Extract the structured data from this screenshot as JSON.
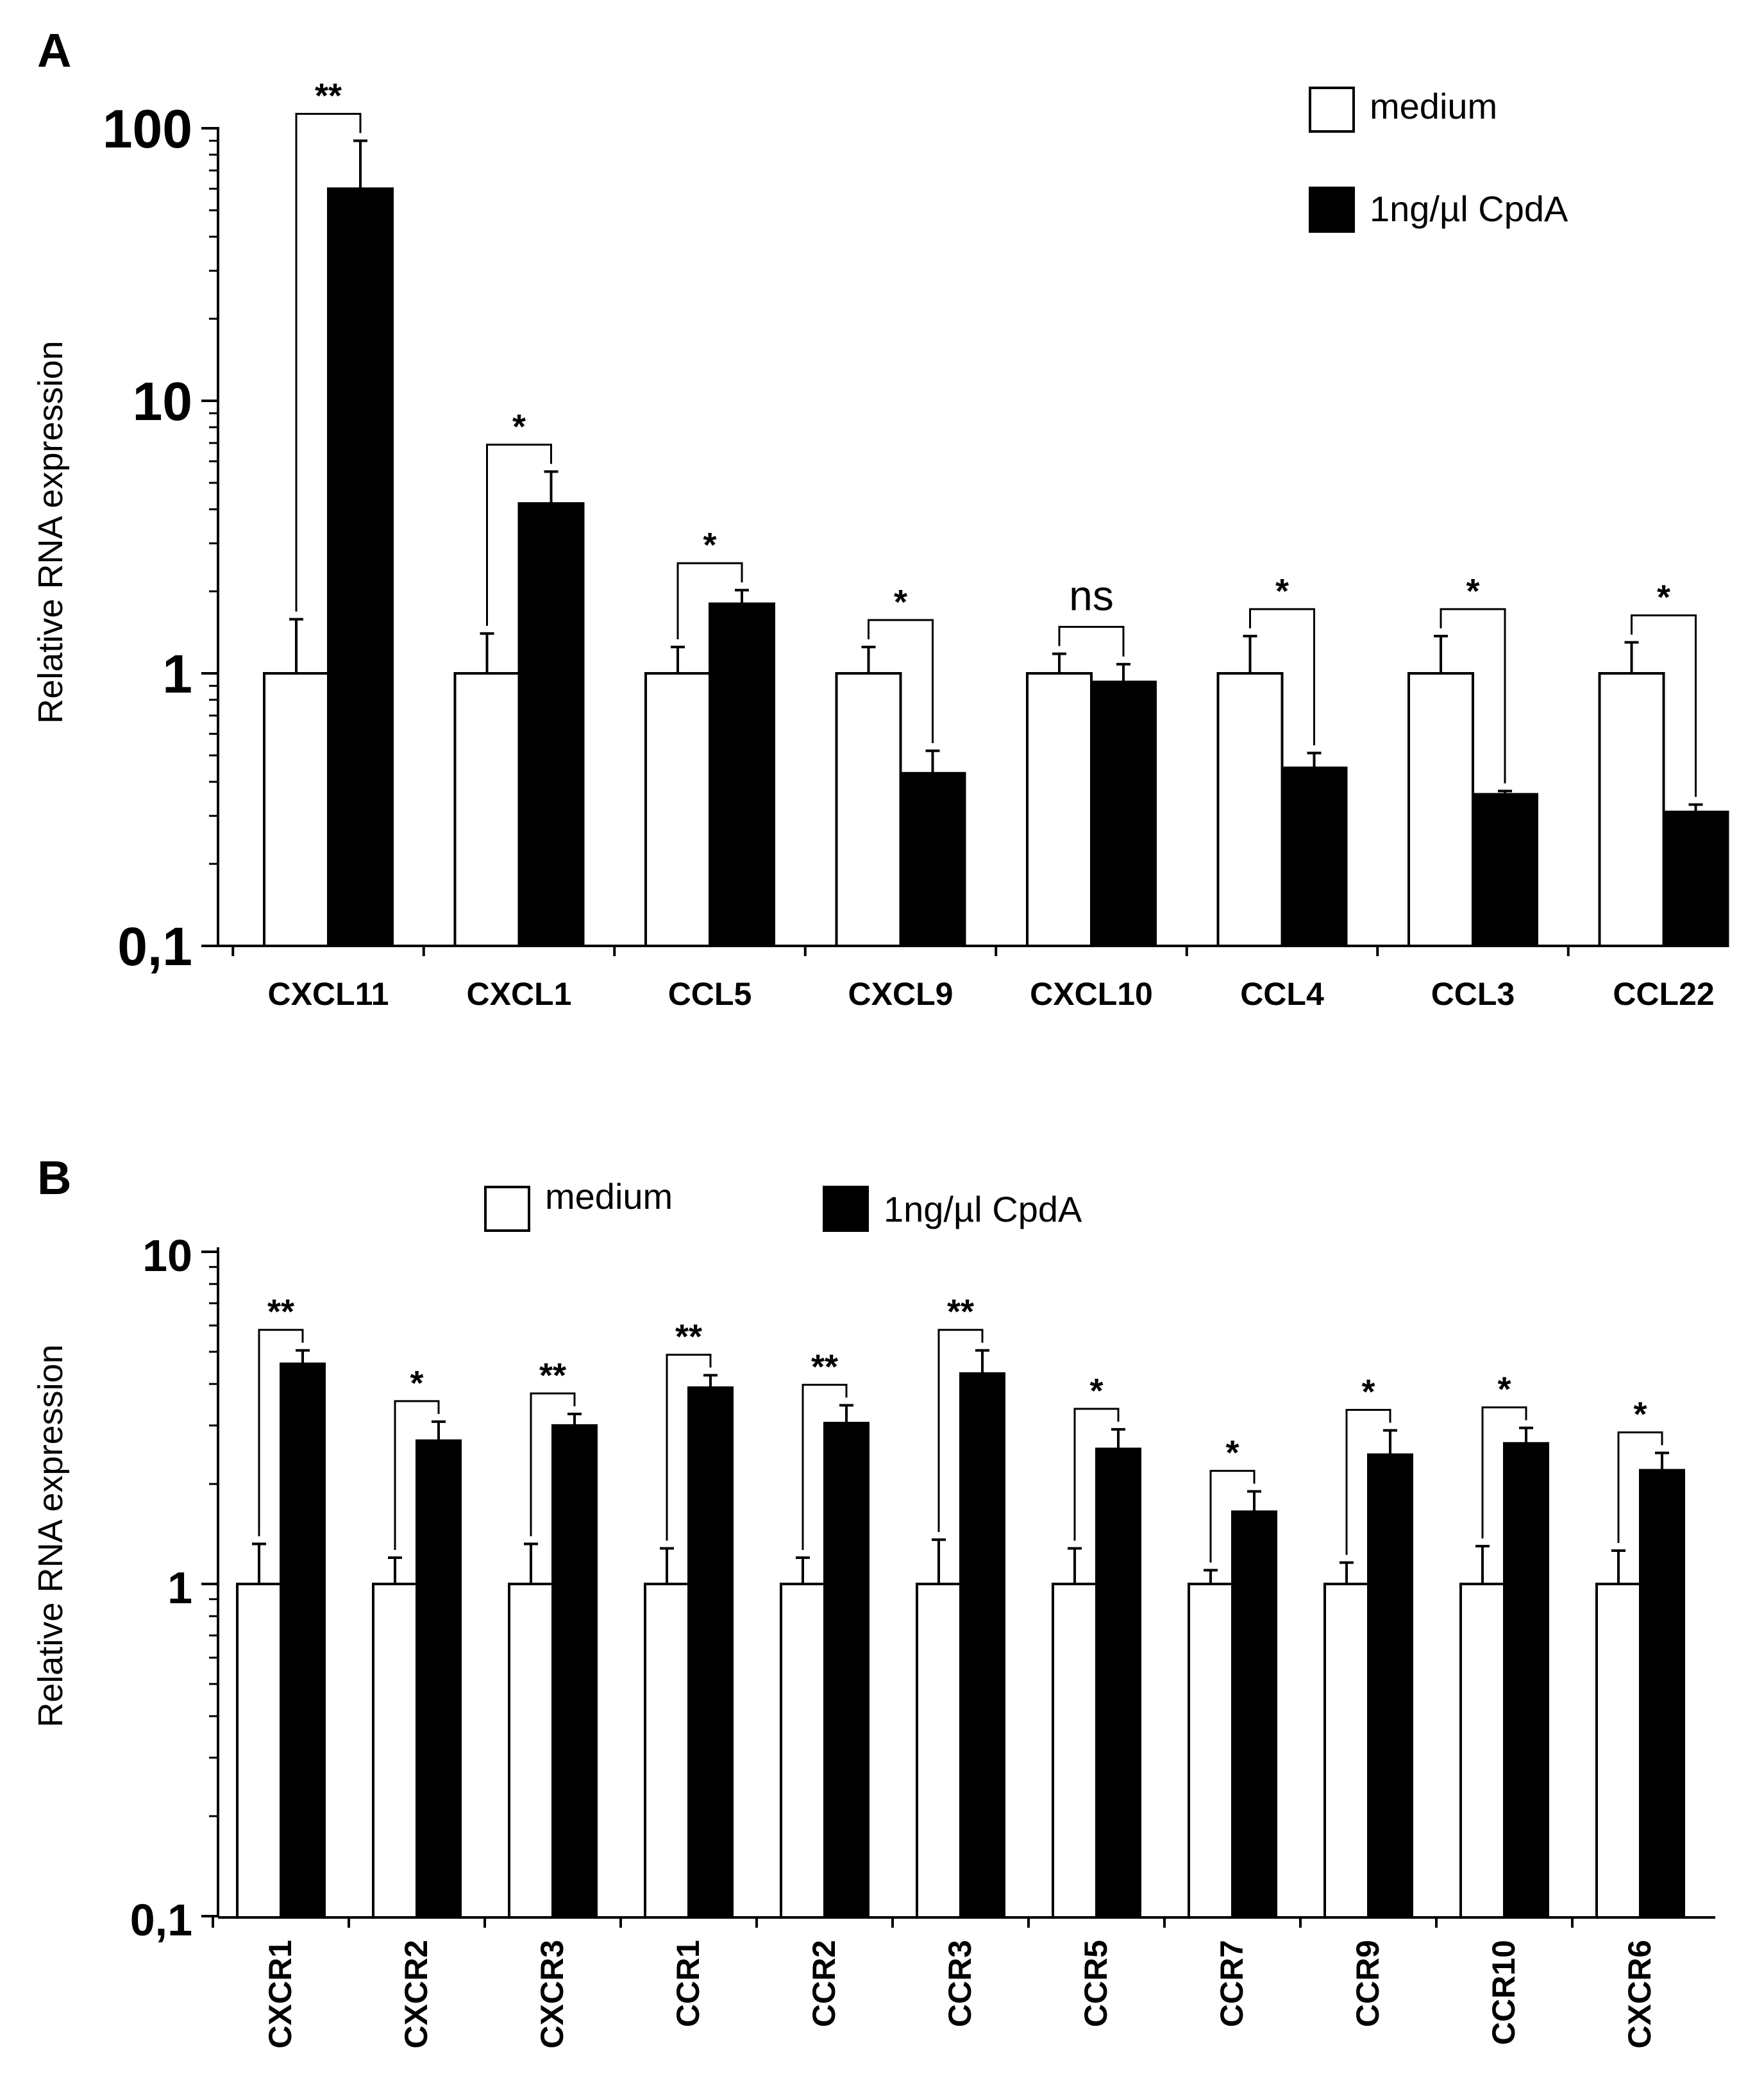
{
  "chart_data": [
    {
      "panel": "A",
      "type": "bar",
      "yscale": "log",
      "ylabel": "Relative RNA expression",
      "yticks": [
        "0,1",
        "1",
        "10",
        "100"
      ],
      "ylim": [
        0.1,
        100
      ],
      "legend": [
        "medium",
        "1ng/µl CpdA"
      ],
      "categories": [
        "CXCL11",
        "CXCL1",
        "CCL5",
        "CXCL9",
        "CXCL10",
        "CCL4",
        "CCL3",
        "CCL22"
      ],
      "series": [
        {
          "name": "medium",
          "values": [
            1,
            1,
            1,
            1,
            1,
            1,
            1,
            1
          ],
          "errors": [
            1.58,
            1.4,
            1.25,
            1.25,
            1.18,
            1.37,
            1.37,
            1.3
          ]
        },
        {
          "name": "1ng/µl CpdA",
          "values": [
            60,
            4.2,
            1.8,
            0.43,
            0.93,
            0.45,
            0.36,
            0.31
          ],
          "errors": [
            90,
            5.5,
            2.02,
            0.52,
            1.08,
            0.51,
            0.37,
            0.33
          ]
        }
      ],
      "significance": [
        "**",
        "*",
        "*",
        "*",
        "ns",
        "*",
        "*",
        "*"
      ]
    },
    {
      "panel": "B",
      "type": "bar",
      "yscale": "log",
      "ylabel": "Relative RNA  expression",
      "yticks": [
        "0,1",
        "1",
        "10"
      ],
      "ylim": [
        0.1,
        10
      ],
      "legend": [
        "medium",
        "1ng/µl CpdA"
      ],
      "categories": [
        "CXCR1",
        "CXCR2",
        "CXCR3",
        "CCR1",
        "CCR2",
        "CCR3",
        "CCR5",
        "CCR7",
        "CCR9",
        "CCR10",
        "CXCR6"
      ],
      "series": [
        {
          "name": "medium",
          "values": [
            1,
            1,
            1,
            1,
            1,
            1,
            1,
            1,
            1,
            1,
            1
          ],
          "errors": [
            1.32,
            1.2,
            1.32,
            1.28,
            1.2,
            1.36,
            1.28,
            1.1,
            1.16,
            1.3,
            1.26
          ]
        },
        {
          "name": "1ng/µl CpdA",
          "values": [
            4.6,
            2.7,
            3.0,
            3.9,
            3.05,
            4.3,
            2.55,
            1.65,
            2.45,
            2.65,
            2.2
          ],
          "errors": [
            5.05,
            3.08,
            3.25,
            4.25,
            3.45,
            5.05,
            2.92,
            1.9,
            2.9,
            2.95,
            2.48
          ]
        }
      ],
      "significance": [
        "**",
        "*",
        "**",
        "**",
        "**",
        "**",
        "*",
        "*",
        "*",
        "*",
        "*"
      ]
    }
  ]
}
